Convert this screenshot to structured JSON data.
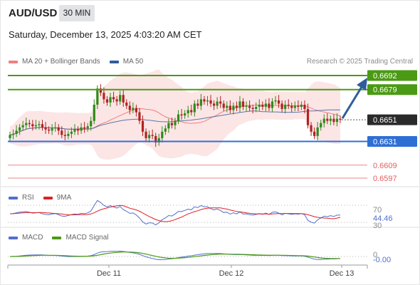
{
  "header": {
    "symbol": "AUD/USD",
    "timeframe": "30 MIN",
    "datetime": "Saturday, December 13, 2025 4:03:20 AM CET"
  },
  "legend": {
    "main": [
      {
        "label": "MA 20 + Bollinger Bands",
        "color": "#f08080"
      },
      {
        "label": "MA 50",
        "color": "#2f5d9c"
      }
    ],
    "research": "Research © 2025 Trading Central",
    "rsi": [
      {
        "label": "RSI",
        "color": "#4f6fd0"
      },
      {
        "label": "9MA",
        "color": "#dd2222"
      }
    ],
    "macd": [
      {
        "label": "MACD",
        "color": "#4f6fd0"
      },
      {
        "label": "MACD Signal",
        "color": "#4a9a14"
      }
    ]
  },
  "colors": {
    "up": "#2f8a1a",
    "down": "#b22222",
    "resistance": "#4a9a14",
    "support": "#2e6fd6",
    "target": "#e06060",
    "current": "#2a2a2a",
    "arrow": "#2f5d9c"
  },
  "chart_data": {
    "type": "candlestick",
    "x_ticks": [
      "Dec 11",
      "Dec 12",
      "Dec 13"
    ],
    "ylim": [
      0.6597,
      0.6692
    ],
    "price_levels": [
      {
        "value": "0.6692",
        "kind": "resistance"
      },
      {
        "value": "0.6679",
        "kind": "resistance"
      },
      {
        "value": "0.6651",
        "kind": "current"
      },
      {
        "value": "0.6631",
        "kind": "support"
      },
      {
        "value": "0.6609",
        "kind": "target"
      },
      {
        "value": "0.6597",
        "kind": "target"
      }
    ],
    "close": [
      0.6637,
      0.6638,
      0.6641,
      0.6644,
      0.6646,
      0.6648,
      0.6647,
      0.6645,
      0.6646,
      0.6647,
      0.6644,
      0.6642,
      0.6641,
      0.6643,
      0.6644,
      0.6641,
      0.6637,
      0.6636,
      0.6638,
      0.664,
      0.6642,
      0.6641,
      0.6644,
      0.6643,
      0.6645,
      0.665,
      0.6665,
      0.668,
      0.6676,
      0.667,
      0.6667,
      0.6672,
      0.667,
      0.6668,
      0.6674,
      0.6667,
      0.6664,
      0.666,
      0.6662,
      0.6658,
      0.665,
      0.664,
      0.6634,
      0.6637,
      0.6636,
      0.663,
      0.6634,
      0.664,
      0.6643,
      0.6648,
      0.6646,
      0.665,
      0.6656,
      0.6655,
      0.6657,
      0.666,
      0.6658,
      0.6666,
      0.6664,
      0.667,
      0.6668,
      0.6669,
      0.6666,
      0.6664,
      0.6668,
      0.6666,
      0.6662,
      0.6664,
      0.666,
      0.6664,
      0.6662,
      0.6668,
      0.6663,
      0.6664,
      0.6662,
      0.6661,
      0.6663,
      0.6665,
      0.6663,
      0.6666,
      0.6662,
      0.6668,
      0.6669,
      0.6666,
      0.6661,
      0.6665,
      0.6664,
      0.6662,
      0.6664,
      0.6663,
      0.6665,
      0.6661,
      0.6646,
      0.664,
      0.6636,
      0.6644,
      0.6648,
      0.6652,
      0.665,
      0.6652,
      0.6649,
      0.6652,
      0.6651
    ],
    "ma50_shown": true,
    "bollinger_shown": true
  },
  "rsi_panel": {
    "levels": [
      "70",
      "44.46",
      "30"
    ]
  },
  "macd_panel": {
    "levels": [
      "0",
      "-0.00"
    ]
  }
}
